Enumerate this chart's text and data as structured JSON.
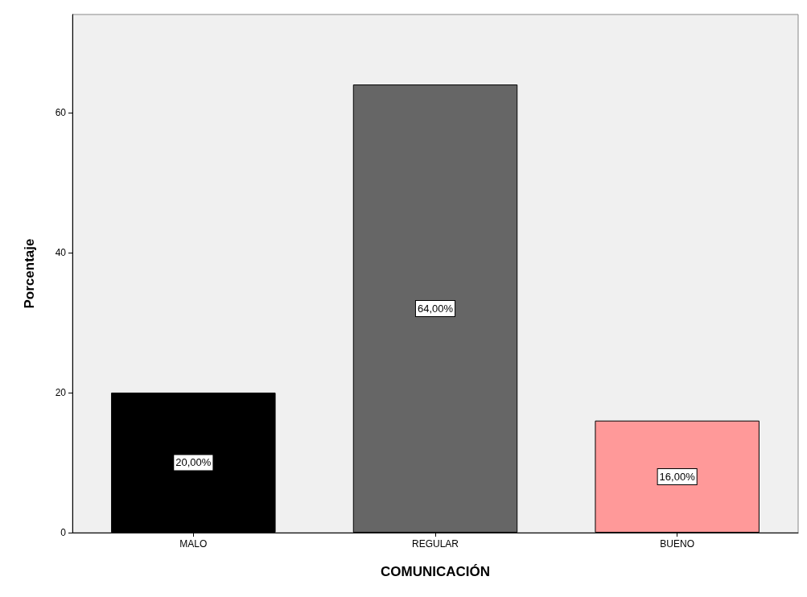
{
  "chart_data": {
    "type": "bar",
    "xlabel": "COMUNICACIÓN",
    "ylabel": "Porcentaje",
    "categories": [
      "MALO",
      "REGULAR",
      "BUENO"
    ],
    "values": [
      20,
      64,
      16
    ],
    "colors": [
      "#000000",
      "#666666",
      "#ff9999"
    ],
    "value_labels": [
      "20,00%",
      "64,00%",
      "16,00%"
    ],
    "ylim": [
      0,
      74
    ],
    "yticks": [
      0,
      20,
      40,
      60
    ],
    "grid": false
  }
}
